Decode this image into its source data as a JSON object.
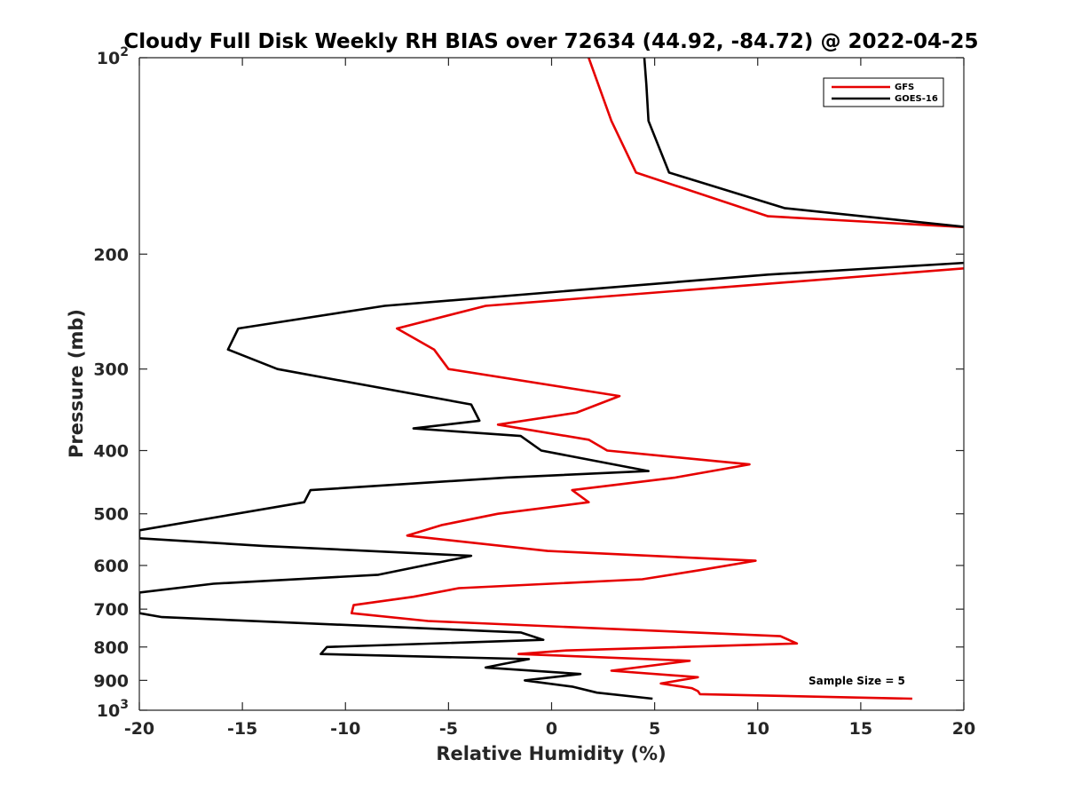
{
  "chart_data": {
    "type": "line",
    "title": "Cloudy Full Disk Weekly RH BIAS over 72634 (44.92, -84.72) @ 2022-04-25",
    "xlabel": "Relative Humidity (%)",
    "ylabel": "Pressure (mb)",
    "xlim": [
      -20,
      20
    ],
    "ylim": [
      100,
      1000
    ],
    "y_scale": "log",
    "y_reversed": true,
    "x_ticks": [
      "-20",
      "-15",
      "-10",
      "-5",
      "0",
      "5",
      "10",
      "15",
      "20"
    ],
    "y_ticks": [
      {
        "value": 100,
        "label": "10",
        "sup": "2"
      },
      {
        "value": 200,
        "label": "200",
        "sup": ""
      },
      {
        "value": 300,
        "label": "300",
        "sup": ""
      },
      {
        "value": 400,
        "label": "400",
        "sup": ""
      },
      {
        "value": 500,
        "label": "500",
        "sup": ""
      },
      {
        "value": 600,
        "label": "600",
        "sup": ""
      },
      {
        "value": 700,
        "label": "700",
        "sup": ""
      },
      {
        "value": 800,
        "label": "800",
        "sup": ""
      },
      {
        "value": 900,
        "label": "900",
        "sup": ""
      },
      {
        "value": 1000,
        "label": "10",
        "sup": "3"
      }
    ],
    "legend_position": "top-right",
    "annotation": "Sample Size = 5",
    "series": [
      {
        "name": "GFS",
        "color": "#e60000",
        "points": [
          [
            1.8,
            100
          ],
          [
            2.9,
            125
          ],
          [
            4.1,
            150
          ],
          [
            10.5,
            175
          ],
          [
            20.3,
            182
          ],
          [
            20.3,
            210
          ],
          [
            -3.2,
            240
          ],
          [
            -7.5,
            260
          ],
          [
            -5.7,
            280
          ],
          [
            -5.0,
            300
          ],
          [
            3.3,
            330
          ],
          [
            1.2,
            350
          ],
          [
            -2.6,
            365
          ],
          [
            1.8,
            385
          ],
          [
            2.7,
            400
          ],
          [
            9.6,
            420
          ],
          [
            6.0,
            440
          ],
          [
            1.0,
            460
          ],
          [
            1.8,
            480
          ],
          [
            -2.6,
            500
          ],
          [
            -5.3,
            520
          ],
          [
            -7.0,
            540
          ],
          [
            -0.2,
            570
          ],
          [
            9.9,
            590
          ],
          [
            7.2,
            610
          ],
          [
            4.4,
            630
          ],
          [
            -4.5,
            650
          ],
          [
            -6.7,
            670
          ],
          [
            -9.6,
            690
          ],
          [
            -9.7,
            710
          ],
          [
            -6.0,
            730
          ],
          [
            11.1,
            770
          ],
          [
            11.9,
            790
          ],
          [
            0.7,
            810
          ],
          [
            -1.6,
            820
          ],
          [
            6.7,
            840
          ],
          [
            2.9,
            870
          ],
          [
            7.1,
            890
          ],
          [
            5.3,
            910
          ],
          [
            6.8,
            925
          ],
          [
            7.1,
            935
          ],
          [
            7.2,
            945
          ],
          [
            17.5,
            960
          ]
        ]
      },
      {
        "name": "GOES-16",
        "color": "#000000",
        "points": [
          [
            4.5,
            100
          ],
          [
            4.6,
            110
          ],
          [
            4.7,
            125
          ],
          [
            5.7,
            150
          ],
          [
            11.3,
            170
          ],
          [
            20.3,
            182
          ],
          [
            20.3,
            206
          ],
          [
            10.5,
            215
          ],
          [
            -8.1,
            240
          ],
          [
            -15.2,
            260
          ],
          [
            -15.7,
            280
          ],
          [
            -13.3,
            300
          ],
          [
            -3.9,
            340
          ],
          [
            -3.5,
            360
          ],
          [
            -6.7,
            370
          ],
          [
            -1.5,
            380
          ],
          [
            -0.5,
            400
          ],
          [
            4.7,
            430
          ],
          [
            -2.2,
            440
          ],
          [
            -11.7,
            460
          ],
          [
            -12.0,
            480
          ],
          [
            -20.0,
            530
          ],
          [
            -20.0,
            545
          ],
          [
            -14.0,
            560
          ],
          [
            -3.9,
            580
          ],
          [
            -8.4,
            620
          ],
          [
            -16.4,
            640
          ],
          [
            -20.0,
            660
          ],
          [
            -20.0,
            710
          ],
          [
            -18.9,
            720
          ],
          [
            -1.5,
            760
          ],
          [
            -0.4,
            780
          ],
          [
            -10.9,
            800
          ],
          [
            -11.2,
            820
          ],
          [
            -1.1,
            835
          ],
          [
            -2.4,
            850
          ],
          [
            -3.2,
            860
          ],
          [
            1.4,
            880
          ],
          [
            -1.3,
            900
          ],
          [
            1.0,
            920
          ],
          [
            2.2,
            940
          ],
          [
            4.9,
            960
          ]
        ]
      }
    ]
  }
}
